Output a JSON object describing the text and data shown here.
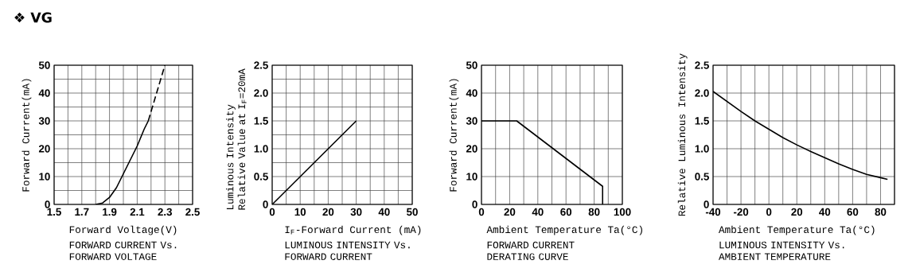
{
  "chart_data": [
    {
      "type": "line",
      "annotations": [
        "❖ VG"
      ],
      "title": "FORWARD CURRENT Vs. FORWARD VOLTAGE",
      "xlabel": "Forward Voltage(V)",
      "ylabel": "Forward Current(mA)",
      "grid": true,
      "xlim": [
        1.5,
        2.5
      ],
      "ylim": [
        0,
        50
      ],
      "xticks": [
        1.5,
        {
          "value": 1.6,
          "label": null
        },
        1.7,
        {
          "value": 1.8,
          "label": null
        },
        1.9,
        {
          "value": 2.0,
          "label": null
        },
        2.1,
        {
          "value": 2.2,
          "label": null
        },
        2.3,
        {
          "value": 2.4,
          "label": null
        },
        2.5
      ],
      "yticks": [
        0,
        {
          "value": 5,
          "label": null
        },
        10,
        {
          "value": 15,
          "label": null
        },
        20,
        {
          "value": 25,
          "label": null
        },
        30,
        {
          "value": 35,
          "label": null
        },
        40,
        {
          "value": 45,
          "label": null
        },
        50
      ],
      "series": [
        {
          "color": "#000000",
          "line_style": "solid",
          "x": [
            1.8,
            1.85,
            1.9,
            1.95,
            2.0,
            2.05,
            2.1,
            2.15,
            2.18
          ],
          "values": [
            0,
            0.5,
            2.5,
            6,
            11,
            16,
            21,
            27,
            30
          ]
        },
        {
          "color": "#000000",
          "line_style": "dashed",
          "x": [
            2.18,
            2.3
          ],
          "values": [
            30,
            50
          ]
        }
      ]
    },
    {
      "type": "line",
      "title": "LUMINOUS INTENSITY Vs. FORWARD CURRENT",
      "xlabel": "I$_{F}$-Forward Current (mA)",
      "ylabel": "Luminous Intensity Relative Value at I$_{F}$=20mA",
      "grid": true,
      "xlim": [
        0,
        50
      ],
      "ylim": [
        0,
        2.5
      ],
      "xticks": [
        0,
        {
          "value": 5,
          "label": null
        },
        10,
        {
          "value": 15,
          "label": null
        },
        20,
        {
          "value": 25,
          "label": null
        },
        30,
        {
          "value": 35,
          "label": null
        },
        40,
        {
          "value": 45,
          "label": null
        },
        50
      ],
      "yticks": [
        0,
        {
          "value": 0.25,
          "label": null
        },
        0.5,
        {
          "value": 0.75,
          "label": null
        },
        {
          "value": 1,
          "label": "1.0"
        },
        {
          "value": 1.25,
          "label": null
        },
        1.5,
        {
          "value": 1.75,
          "label": null
        },
        {
          "value": 2,
          "label": "2.0"
        },
        {
          "value": 2.25,
          "label": null
        },
        2.5
      ],
      "series": [
        {
          "color": "#000000",
          "x": [
            0,
            30
          ],
          "values": [
            0,
            1.5
          ]
        }
      ]
    },
    {
      "type": "line",
      "title": "FORWARD CURRENT DERATING CURVE",
      "xlabel": "Ambient Temperature Ta(°C)",
      "ylabel": "Forward Current(mA)",
      "grid": true,
      "xlim": [
        0,
        100
      ],
      "ylim": [
        0,
        50
      ],
      "xticks": [
        0,
        {
          "value": 10,
          "label": null
        },
        20,
        {
          "value": 30,
          "label": null
        },
        40,
        {
          "value": 50,
          "label": null
        },
        60,
        {
          "value": 70,
          "label": null
        },
        80,
        {
          "value": 90,
          "label": null
        },
        100
      ],
      "yticks": [
        0,
        10,
        20,
        30,
        40,
        50
      ],
      "series": [
        {
          "color": "#000000",
          "x": [
            0,
            25,
            86,
            86
          ],
          "values": [
            30,
            30,
            6.5,
            0
          ]
        }
      ]
    },
    {
      "type": "line",
      "title": "LUMINOUS INTENSITY Vs. AMBIENT TEMPERATURE",
      "xlabel": "Ambient Temperature Ta(°C)",
      "ylabel": "Relative Luminous Intensity",
      "grid": true,
      "xlim": [
        -40,
        90
      ],
      "ylim": [
        0,
        2.5
      ],
      "xticks": [
        -40,
        {
          "value": -30,
          "label": null
        },
        -20,
        {
          "value": -10,
          "label": null
        },
        0,
        {
          "value": 10,
          "label": null
        },
        20,
        {
          "value": 30,
          "label": null
        },
        40,
        {
          "value": 50,
          "label": null
        },
        60,
        {
          "value": 70,
          "label": null
        },
        80,
        {
          "value": 90,
          "label": null
        }
      ],
      "yticks": [
        0,
        0.5,
        {
          "value": 1,
          "label": "1.0"
        },
        1.5,
        {
          "value": 2,
          "label": "2.0"
        },
        2.5
      ],
      "series": [
        {
          "color": "#000000",
          "x": [
            -40,
            -30,
            -20,
            -10,
            0,
            10,
            20,
            30,
            40,
            50,
            60,
            70,
            80,
            85
          ],
          "values": [
            2.03,
            1.85,
            1.67,
            1.5,
            1.35,
            1.2,
            1.07,
            0.95,
            0.84,
            0.73,
            0.63,
            0.54,
            0.48,
            0.45
          ]
        }
      ]
    }
  ]
}
